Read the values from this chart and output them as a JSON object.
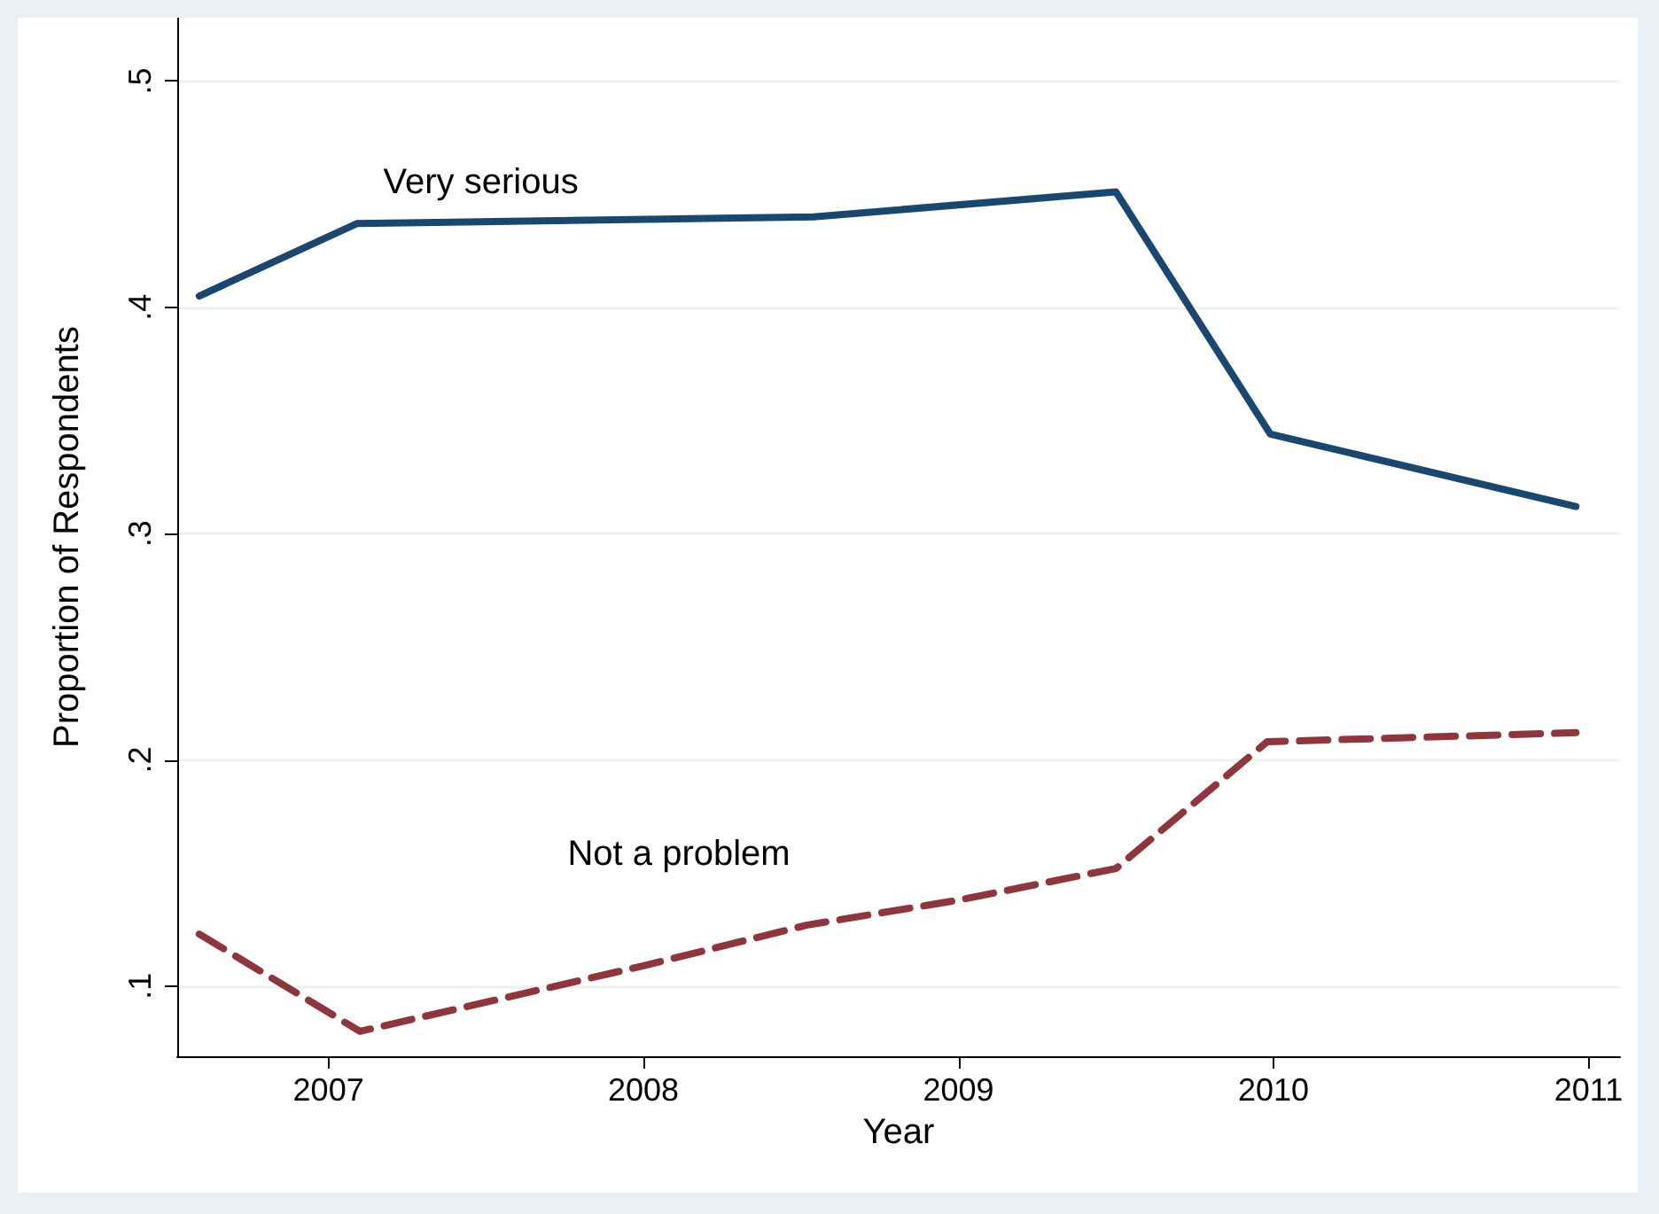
{
  "chart_data": {
    "type": "line",
    "xlabel": "Year",
    "ylabel": "Proportion of Respondents",
    "xlim": [
      2006.52,
      2011.1
    ],
    "ylim": [
      0.069,
      0.528
    ],
    "xticks": [
      2007,
      2008,
      2009,
      2010,
      2011
    ],
    "yticks": [
      {
        "value": 0.1,
        "label": ".1"
      },
      {
        "value": 0.2,
        "label": ".2"
      },
      {
        "value": 0.3,
        "label": ".3"
      },
      {
        "value": 0.4,
        "label": ".4"
      },
      {
        "value": 0.5,
        "label": ".5"
      }
    ],
    "grid": "y",
    "marker": "none",
    "series": [
      {
        "name": "Very serious",
        "color": "#1a476f",
        "line_style": "solid",
        "x": [
          2006.59,
          2007.09,
          2008.54,
          2009.5,
          2009.99,
          2010.96
        ],
        "values": [
          0.405,
          0.437,
          0.44,
          0.451,
          0.344,
          0.312
        ]
      },
      {
        "name": "Not a problem",
        "color": "#90353b",
        "line_style": "dashed",
        "x": [
          2006.59,
          2007.1,
          2008.0,
          2008.52,
          2009.0,
          2009.5,
          2009.98,
          2010.96
        ],
        "values": [
          0.123,
          0.08,
          0.109,
          0.127,
          0.138,
          0.152,
          0.208,
          0.212
        ]
      }
    ]
  }
}
